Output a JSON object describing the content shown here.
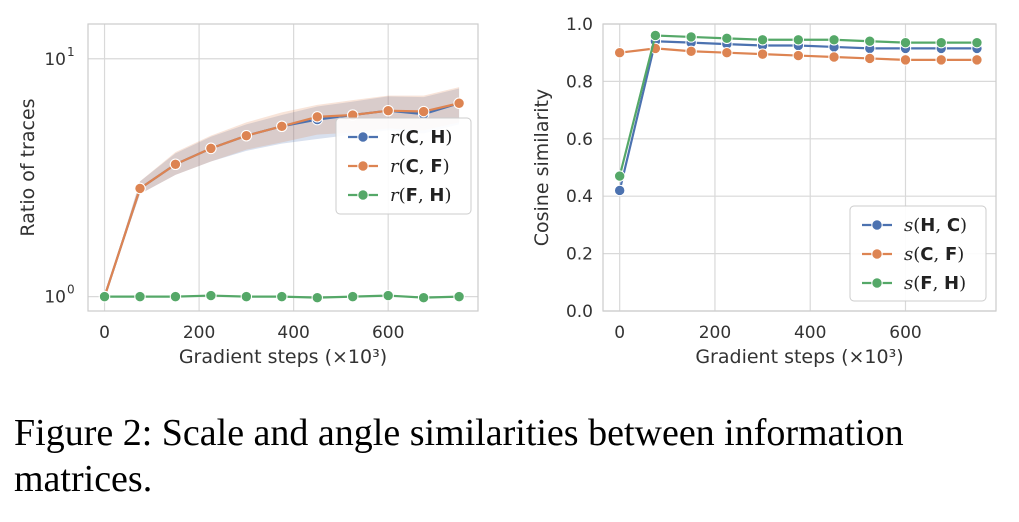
{
  "chart_data": [
    {
      "type": "line",
      "ylabel": "Ratio of traces",
      "xlabel": "Gradient steps (×10³)",
      "yscale": "log",
      "ylim": [
        0.87,
        14.0
      ],
      "xlim": [
        -35,
        790
      ],
      "xticks": [
        "0",
        "200",
        "400",
        "600"
      ],
      "yticks": [
        "10",
        "10"
      ],
      "ytick_exponents": [
        "0",
        "1"
      ],
      "grid": true,
      "legend_position": "center-right",
      "x": [
        0,
        75,
        150,
        225,
        300,
        375,
        450,
        525,
        600,
        675,
        750
      ],
      "series": [
        {
          "name": "r(C, H)",
          "color": "#4c72b0",
          "values": [
            1.0,
            2.85,
            3.6,
            4.2,
            4.75,
            5.2,
            5.55,
            5.8,
            6.05,
            5.85,
            6.5
          ],
          "band_low": [
            1.0,
            2.7,
            3.25,
            3.7,
            4.1,
            4.4,
            4.6,
            4.8,
            5.0,
            4.85,
            5.3
          ],
          "band_high": [
            1.0,
            3.05,
            4.0,
            4.7,
            5.3,
            5.8,
            6.3,
            6.6,
            6.95,
            6.9,
            7.5
          ]
        },
        {
          "name": "r(C, F)",
          "color": "#dd8452",
          "values": [
            1.0,
            2.85,
            3.6,
            4.2,
            4.75,
            5.2,
            5.7,
            5.8,
            6.05,
            6.0,
            6.5
          ],
          "band_low": [
            1.0,
            2.7,
            3.25,
            3.7,
            4.15,
            4.45,
            4.8,
            4.9,
            5.1,
            5.0,
            5.4
          ],
          "band_high": [
            1.0,
            3.05,
            4.05,
            4.75,
            5.4,
            5.95,
            6.4,
            6.7,
            7.0,
            7.0,
            7.6
          ]
        },
        {
          "name": "r(F, H)",
          "color": "#55a868",
          "values": [
            1.0,
            1.0,
            1.0,
            1.01,
            1.0,
            1.0,
            0.99,
            1.0,
            1.01,
            0.99,
            1.0
          ]
        }
      ]
    },
    {
      "type": "line",
      "ylabel": "Cosine similarity",
      "xlabel": "Gradient steps (×10³)",
      "ylim": [
        0.0,
        1.0
      ],
      "xlim": [
        -35,
        790
      ],
      "xticks": [
        "0",
        "200",
        "400",
        "600"
      ],
      "yticks": [
        "0.0",
        "0.2",
        "0.4",
        "0.6",
        "0.8",
        "1.0"
      ],
      "grid": true,
      "legend_position": "lower-right",
      "x": [
        0,
        75,
        150,
        225,
        300,
        375,
        450,
        525,
        600,
        675,
        750
      ],
      "series": [
        {
          "name": "s(H, C)",
          "color": "#4c72b0",
          "values": [
            0.42,
            0.94,
            0.935,
            0.93,
            0.925,
            0.925,
            0.92,
            0.915,
            0.915,
            0.915,
            0.915
          ]
        },
        {
          "name": "s(C, F)",
          "color": "#dd8452",
          "values": [
            0.9,
            0.915,
            0.905,
            0.9,
            0.895,
            0.89,
            0.885,
            0.88,
            0.875,
            0.875,
            0.875
          ]
        },
        {
          "name": "s(F, H)",
          "color": "#55a868",
          "values": [
            0.47,
            0.96,
            0.955,
            0.95,
            0.945,
            0.945,
            0.945,
            0.94,
            0.935,
            0.935,
            0.935
          ]
        }
      ]
    }
  ],
  "legend_left": [
    {
      "fn": "r",
      "a": "C",
      "b": "H"
    },
    {
      "fn": "r",
      "a": "C",
      "b": "F"
    },
    {
      "fn": "r",
      "a": "F",
      "b": "H"
    }
  ],
  "legend_right": [
    {
      "fn": "s",
      "a": "H",
      "b": "C"
    },
    {
      "fn": "s",
      "a": "C",
      "b": "F"
    },
    {
      "fn": "s",
      "a": "F",
      "b": "H"
    }
  ],
  "caption": "Figure 2: Scale and angle similarities between information matrices."
}
